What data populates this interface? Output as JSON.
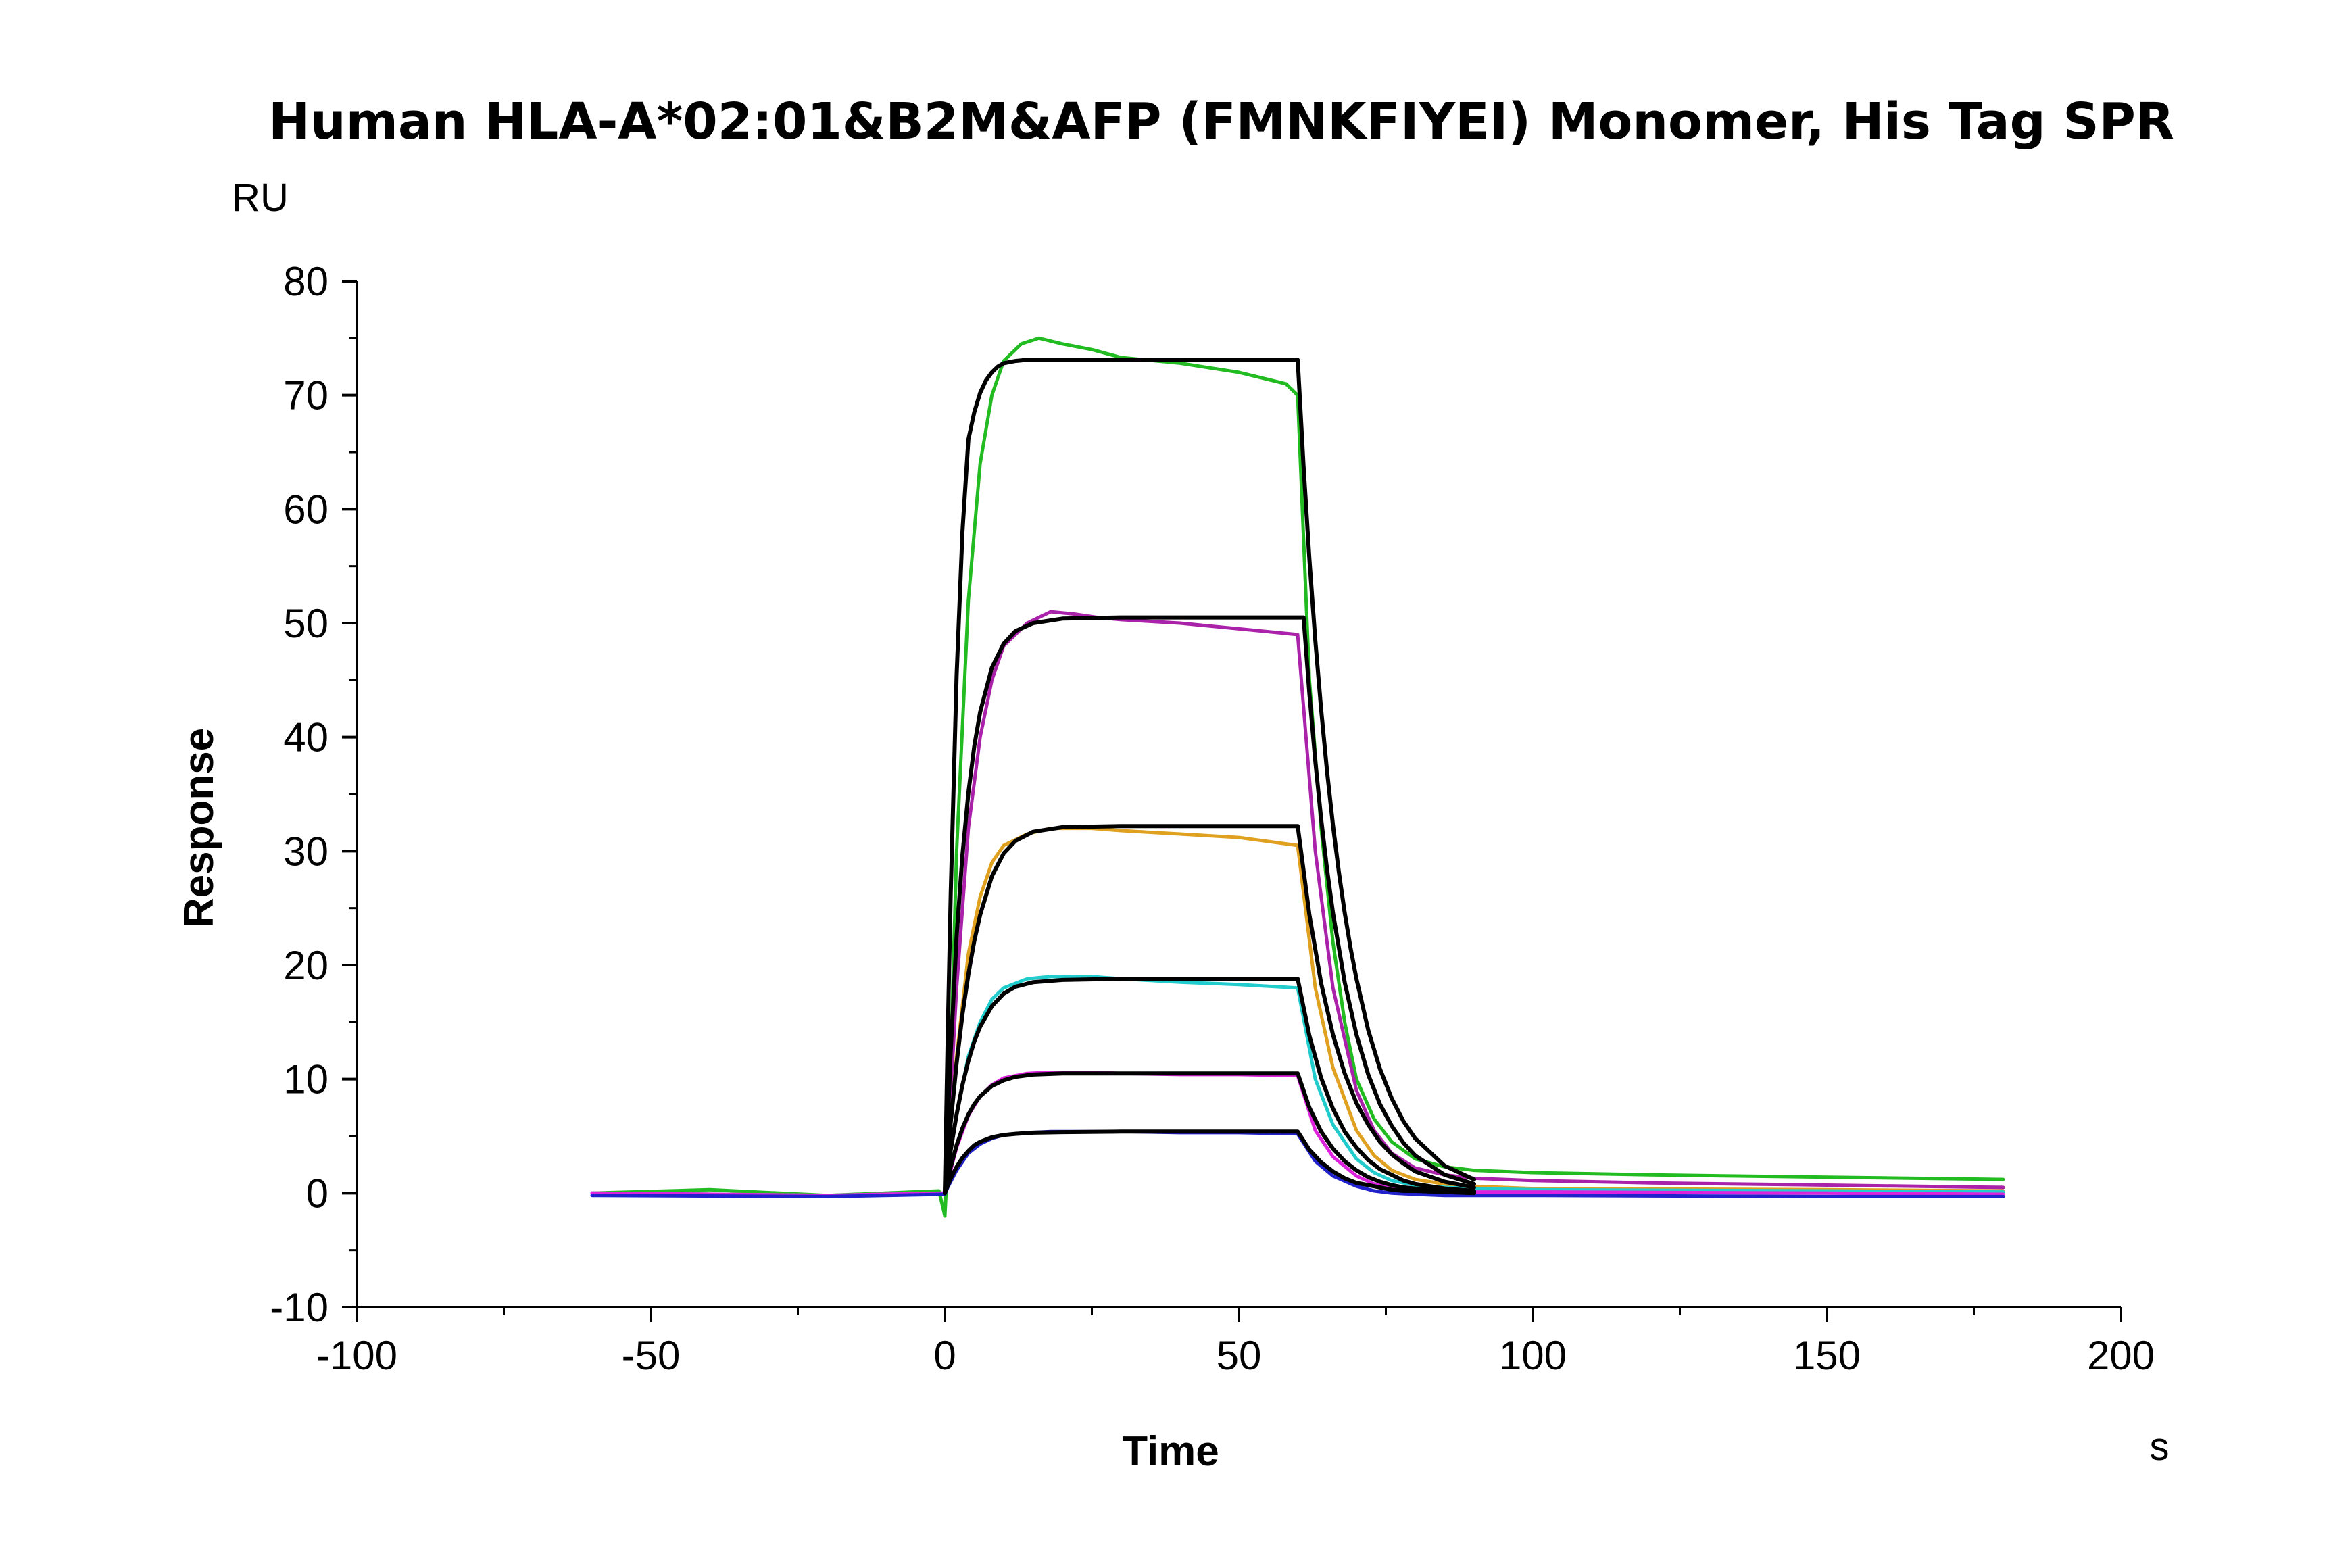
{
  "chart_data": {
    "type": "line",
    "title": "Human HLA-A*02:01&B2M&AFP (FMNKFIYEI) Monomer, His Tag SPR",
    "xlabel": "Time",
    "ylabel": "Response",
    "x_unit": "s",
    "y_unit": "RU",
    "xlim": [
      -100,
      200
    ],
    "ylim": [
      -10,
      80
    ],
    "x_ticks": [
      -100,
      -50,
      0,
      50,
      100,
      150,
      200
    ],
    "y_ticks": [
      -10,
      0,
      10,
      20,
      30,
      40,
      50,
      60,
      70,
      80
    ],
    "x_tick_labels": [
      "-100",
      "-50",
      "0",
      "50",
      "100",
      "150",
      "200"
    ],
    "y_tick_labels": [
      "-10",
      "0",
      "10",
      "20",
      "30",
      "40",
      "50",
      "60",
      "70",
      "80"
    ],
    "grid": false,
    "legend": "none",
    "series": [
      {
        "color": "#22bb22",
        "x": [
          -60,
          -40,
          -20,
          -1,
          0,
          0.3,
          0.8,
          2,
          4,
          6,
          8,
          10,
          13,
          16,
          20,
          25,
          30,
          40,
          50,
          58,
          60,
          62,
          64,
          66,
          68,
          70,
          73,
          76,
          80,
          85,
          90,
          100,
          120,
          150,
          180
        ],
        "y": [
          0,
          0.3,
          -0.2,
          0.2,
          -2,
          1,
          8,
          30,
          52,
          64,
          70,
          73,
          74.5,
          75,
          74.5,
          74,
          73.3,
          72.8,
          72,
          71,
          70,
          45,
          32,
          22,
          15,
          10,
          6.5,
          4.5,
          3,
          2.3,
          2,
          1.8,
          1.6,
          1.4,
          1.2
        ]
      },
      {
        "color": "#aa22aa",
        "x": [
          -60,
          -20,
          0,
          0.5,
          2,
          4,
          6,
          8,
          10,
          14,
          18,
          22,
          26,
          30,
          40,
          50,
          60,
          63,
          66,
          70,
          73,
          76,
          80,
          85,
          90,
          100,
          120,
          150,
          180
        ],
        "y": [
          0,
          -0.2,
          0,
          4,
          18,
          32,
          40,
          45,
          48,
          50,
          51,
          50.8,
          50.5,
          50.3,
          50,
          49.5,
          49,
          30,
          18,
          9,
          5.5,
          3.5,
          2.2,
          1.6,
          1.3,
          1.1,
          0.9,
          0.7,
          0.5
        ]
      },
      {
        "color": "#e0a020",
        "x": [
          -60,
          -20,
          0,
          0.5,
          2,
          4,
          6,
          8,
          10,
          14,
          18,
          25,
          30,
          40,
          50,
          60,
          63,
          66,
          70,
          73,
          76,
          80,
          85,
          90,
          100,
          150,
          180
        ],
        "y": [
          0,
          -0.2,
          0,
          3,
          12,
          21,
          26,
          29,
          30.5,
          31.5,
          32,
          32,
          31.8,
          31.5,
          31.2,
          30.5,
          18,
          11,
          5.5,
          3.3,
          2,
          1.2,
          0.8,
          0.6,
          0.4,
          0.3,
          0.2
        ]
      },
      {
        "color": "#22cccc",
        "x": [
          -60,
          -20,
          0,
          0.5,
          2,
          4,
          6,
          8,
          10,
          14,
          18,
          25,
          30,
          40,
          50,
          60,
          63,
          66,
          70,
          73,
          76,
          80,
          85,
          90,
          100,
          150,
          180
        ],
        "y": [
          0,
          -0.2,
          0,
          2,
          7,
          12,
          15,
          17,
          18,
          18.8,
          19,
          19,
          18.8,
          18.5,
          18.3,
          18,
          10,
          6,
          3,
          1.8,
          1.1,
          0.7,
          0.5,
          0.4,
          0.3,
          0.2,
          0.1
        ]
      },
      {
        "color": "#dd22dd",
        "x": [
          -60,
          -20,
          0,
          0.5,
          2,
          4,
          6,
          8,
          10,
          14,
          18,
          25,
          30,
          40,
          50,
          60,
          63,
          66,
          70,
          73,
          76,
          80,
          85,
          90,
          100,
          150,
          180
        ],
        "y": [
          0,
          -0.2,
          0,
          1,
          4,
          6.8,
          8.5,
          9.5,
          10.1,
          10.5,
          10.6,
          10.6,
          10.5,
          10.4,
          10.4,
          10.3,
          5.5,
          3.2,
          1.5,
          0.8,
          0.5,
          0.3,
          0.2,
          0.1,
          0.1,
          0.0,
          -0.1
        ]
      },
      {
        "color": "#2222cc",
        "x": [
          -60,
          -20,
          0,
          0.5,
          2,
          4,
          6,
          8,
          10,
          14,
          18,
          25,
          30,
          40,
          50,
          60,
          63,
          66,
          70,
          73,
          76,
          80,
          85,
          90,
          100,
          150,
          180
        ],
        "y": [
          -0.2,
          -0.3,
          -0.1,
          0.5,
          2,
          3.5,
          4.3,
          4.8,
          5.1,
          5.3,
          5.4,
          5.4,
          5.4,
          5.3,
          5.3,
          5.2,
          2.8,
          1.5,
          0.6,
          0.2,
          0,
          -0.1,
          -0.2,
          -0.2,
          -0.2,
          -0.3,
          -0.3
        ]
      },
      {
        "color": "#000000",
        "x": [
          0,
          0.5,
          1,
          2,
          3,
          4,
          5,
          6,
          7,
          8,
          9,
          10,
          12,
          14,
          16,
          18,
          20,
          25,
          30,
          40,
          50,
          60,
          60.01,
          61,
          62,
          63,
          64,
          65,
          66,
          67,
          68,
          69,
          70,
          72,
          74,
          76,
          78,
          80,
          85,
          90
        ],
        "y": [
          0,
          14,
          26.3,
          45.4,
          58.1,
          66.1,
          71.4,
          74.8,
          77.0,
          78.4,
          79.3,
          79.9,
          80.6,
          80.9,
          81.0,
          81.1,
          81.1,
          81.1,
          81.1,
          81.1,
          81.1,
          81.1,
          73.1,
          63.8,
          55.6,
          48.5,
          42.4,
          37.0,
          32.3,
          28.2,
          24.6,
          21.5,
          18.8,
          14.3,
          10.9,
          8.3,
          6.3,
          4.8,
          2.4,
          1.2
        ],
        "y_plot_override": [
          0,
          14,
          26.3,
          45.4,
          58.1,
          66.1,
          68.5,
          70.2,
          71.3,
          72.0,
          72.5,
          72.8,
          73.0,
          73.1,
          73.1,
          73.1,
          73.1,
          73.1,
          73.1,
          73.1,
          73.1,
          73.1,
          73.1,
          63.8,
          55.6,
          48.5,
          42.4,
          37.0,
          32.3,
          28.2,
          24.6,
          21.5,
          18.8,
          14.3,
          10.9,
          8.3,
          6.3,
          4.8,
          2.4,
          1.2
        ]
      },
      {
        "color": "#000000",
        "x": [
          0,
          1,
          2,
          3,
          4,
          5,
          6,
          8,
          10,
          12,
          15,
          20,
          30,
          40,
          50,
          61,
          61.01,
          62,
          63,
          64,
          65,
          66,
          68,
          70,
          72,
          74,
          76,
          78,
          80,
          85,
          90
        ],
        "y": [
          0,
          12.5,
          22.5,
          29.7,
          35.1,
          39.2,
          42.2,
          46.1,
          48.2,
          49.3,
          50.0,
          50.4,
          50.5,
          50.5,
          50.5,
          50.5,
          50.5,
          43.8,
          37.9,
          32.8,
          28.4,
          24.6,
          18.5,
          13.9,
          10.4,
          7.8,
          5.9,
          4.4,
          3.3,
          1.6,
          0.8
        ]
      },
      {
        "color": "#000000",
        "x": [
          0,
          1,
          2,
          3,
          4,
          5,
          6,
          8,
          10,
          12,
          15,
          20,
          30,
          40,
          50,
          60,
          60.01,
          62,
          64,
          66,
          68,
          70,
          72,
          74,
          76,
          78,
          80,
          85,
          90
        ],
        "y": [
          0,
          6.2,
          11.4,
          15.7,
          19.2,
          22.1,
          24.4,
          27.8,
          29.8,
          30.9,
          31.7,
          32.1,
          32.2,
          32.2,
          32.2,
          32.2,
          32.2,
          24.4,
          18.4,
          13.9,
          10.5,
          7.9,
          6.0,
          4.5,
          3.4,
          2.6,
          1.9,
          1.0,
          0.5
        ]
      },
      {
        "color": "#000000",
        "x": [
          0,
          1,
          2,
          3,
          4,
          5,
          6,
          8,
          10,
          12,
          15,
          20,
          30,
          40,
          50,
          60,
          60.01,
          62,
          64,
          66,
          68,
          70,
          72,
          74,
          76,
          78,
          80,
          85,
          90
        ],
        "y": [
          0,
          3.8,
          6.9,
          9.5,
          11.6,
          13.3,
          14.6,
          16.4,
          17.5,
          18.1,
          18.5,
          18.7,
          18.8,
          18.8,
          18.8,
          18.8,
          18.8,
          13.8,
          10.1,
          7.4,
          5.4,
          4.0,
          2.9,
          2.1,
          1.6,
          1.1,
          0.8,
          0.4,
          0.2
        ]
      },
      {
        "color": "#000000",
        "x": [
          0,
          1,
          2,
          3,
          4,
          5,
          6,
          8,
          10,
          12,
          15,
          20,
          30,
          40,
          50,
          60,
          60.01,
          62,
          64,
          66,
          68,
          70,
          72,
          74,
          76,
          78,
          80,
          85,
          90
        ],
        "y": [
          0,
          2.3,
          4.2,
          5.7,
          6.9,
          7.8,
          8.5,
          9.4,
          9.9,
          10.2,
          10.4,
          10.5,
          10.5,
          10.5,
          10.5,
          10.5,
          10.5,
          7.5,
          5.4,
          3.9,
          2.8,
          2.0,
          1.4,
          1.0,
          0.7,
          0.5,
          0.4,
          0.2,
          0.1
        ]
      },
      {
        "color": "#000000",
        "x": [
          0,
          1,
          2,
          3,
          4,
          5,
          6,
          8,
          10,
          12,
          15,
          20,
          30,
          40,
          50,
          60,
          60.01,
          62,
          64,
          66,
          68,
          70,
          72,
          74,
          76,
          78,
          80,
          85,
          90
        ],
        "y": [
          0,
          1.3,
          2.3,
          3.1,
          3.7,
          4.2,
          4.5,
          4.9,
          5.1,
          5.2,
          5.3,
          5.35,
          5.4,
          5.4,
          5.4,
          5.4,
          5.4,
          3.8,
          2.7,
          1.9,
          1.3,
          0.9,
          0.7,
          0.5,
          0.3,
          0.2,
          0.2,
          0.1,
          0.0
        ]
      }
    ]
  }
}
